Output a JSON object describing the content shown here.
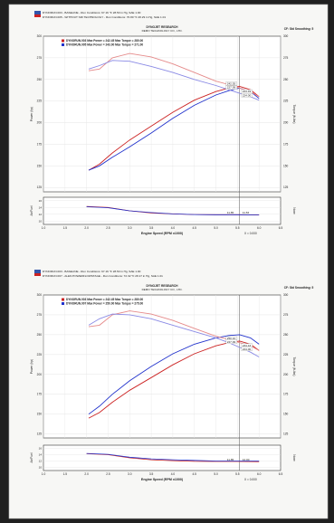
{
  "colors": {
    "red": "#cc2222",
    "blue": "#2233cc",
    "pink": "#e58a8a",
    "lightblue": "#8a8ae5",
    "background": "#202020",
    "paper": "#f7f7f5"
  },
  "charts": [
    {
      "header_line1": "DYNORUN.003 - BASELINE - Run Conditions: 67.16 °F 28.50 in Hg, SAE 1.00",
      "header_line2": "DYNORUN.005 - WITHOUT SRI TECHNOLOGY - Run Conditions: 70.80 °F 28.29 in Hg, SAE 1.01",
      "company_line1": "DYNOJET RESEARCH",
      "company_line2": "DEMO TECHNOLOGY CO., LTD.",
      "right_note": "CF: Std Smoothing: 5",
      "legend": [
        {
          "label": "DYNORUN.003 Max Power = 242.45   Max Torque = 280.00",
          "color": "red"
        },
        {
          "label": "DYNORUN.005 Max Power = 243.00   Max Torque = 271.00",
          "color": "blue"
        }
      ],
      "annotations": [
        "242.55",
        "227.99",
        "224.49",
        "224.00"
      ],
      "lower_annotations": [
        "11.85",
        "11.84"
      ],
      "ylabel_left": "Power (hp)",
      "ylabel_right": "Torque (ft-lbs)",
      "ylabel_lower": "Air/Fuel",
      "ylabel_lower_right": "None",
      "xlabel": "Engine Speed (RPM x1000)",
      "x_note": "X = 0.000",
      "footer": []
    },
    {
      "header_line1": "DYNORUN.003 - BASELINE - Run Conditions: 67.16 °F 28.50 in Hg, SAE 1.00",
      "header_line2": "DYNORUN.007 - ALEN POWERFLOWSTAGE - Run Conditions: 72.32 °F 28.17 in Hg, SAE 1.01",
      "company_line1": "DYNOJET RESEARCH",
      "company_line2": "DEMO TECHNOLOGY CO., LTD.",
      "right_note": "CF: Std Smoothing: 5",
      "legend": [
        {
          "label": "DYNORUN.003 Max Power = 242.45   Max Torque = 280.00",
          "color": "red"
        },
        {
          "label": "DYNORUN.007 Max Power = 250.00   Max Torque = 275.00",
          "color": "blue"
        }
      ],
      "annotations": [
        "250.10",
        "227.99",
        "234.43",
        "224.00"
      ],
      "lower_annotations": [
        "11.85",
        "12.00"
      ],
      "ylabel_left": "Power (hp)",
      "ylabel_right": "Torque (ft-lbs)",
      "ylabel_lower": "Air/Fuel",
      "ylabel_lower_right": "None",
      "xlabel": "Engine Speed (RPM x1000)",
      "x_note": "X = 0.000",
      "footer": []
    }
  ],
  "chart_data": [
    {
      "type": "line",
      "xlim": [
        1.0,
        6.5
      ],
      "x_ticks": [
        "1.0",
        "1.5",
        "2.0",
        "2.5",
        "3.0",
        "3.5",
        "4.0",
        "4.5",
        "5.0",
        "5.5",
        "6.0",
        "6.5"
      ],
      "y_ticks": [
        "300",
        "275",
        "250",
        "225",
        "200",
        "175",
        "150",
        "125"
      ],
      "y_ticks_right": [
        "300",
        "275",
        "250",
        "225",
        "200",
        "175",
        "150",
        "125"
      ],
      "lower_ticks": [
        "16",
        "14",
        "12",
        "10"
      ],
      "ylim": [
        120,
        300
      ],
      "lower_ylim": [
        9,
        17
      ],
      "cursor_x": 5.55,
      "series": [
        {
          "role": "power",
          "color": "red",
          "x": [
            2.05,
            2.3,
            2.6,
            3.0,
            3.5,
            4.0,
            4.5,
            5.0,
            5.3,
            5.55,
            5.8,
            6.0
          ],
          "y": [
            145,
            152,
            165,
            180,
            196,
            212,
            226,
            236,
            240,
            242,
            238,
            230
          ]
        },
        {
          "role": "power",
          "color": "blue",
          "x": [
            2.05,
            2.3,
            2.6,
            3.0,
            3.5,
            4.0,
            4.5,
            5.0,
            5.3,
            5.55,
            5.8,
            6.0
          ],
          "y": [
            145,
            150,
            160,
            172,
            188,
            205,
            220,
            232,
            237,
            240,
            236,
            228
          ]
        },
        {
          "role": "torque",
          "color": "pink",
          "x": [
            2.05,
            2.3,
            2.6,
            3.0,
            3.5,
            4.0,
            4.5,
            5.0,
            5.3,
            5.55,
            5.8,
            6.0
          ],
          "y": [
            260,
            262,
            275,
            280,
            276,
            268,
            258,
            248,
            244,
            240,
            236,
            230
          ]
        },
        {
          "role": "torque",
          "color": "lightblue",
          "x": [
            2.05,
            2.3,
            2.6,
            3.0,
            3.5,
            4.0,
            4.5,
            5.0,
            5.3,
            5.55,
            5.8,
            6.0
          ],
          "y": [
            262,
            266,
            272,
            271,
            265,
            258,
            250,
            243,
            238,
            234,
            230,
            226
          ]
        }
      ],
      "lower_series": [
        {
          "color": "red",
          "x": [
            2.0,
            2.5,
            3.0,
            3.5,
            4.0,
            4.5,
            5.0,
            5.5,
            6.0
          ],
          "y": [
            14.3,
            14.0,
            13.0,
            12.4,
            12.1,
            11.9,
            11.85,
            11.85,
            11.8
          ]
        },
        {
          "color": "blue",
          "x": [
            2.0,
            2.5,
            3.0,
            3.5,
            4.0,
            4.5,
            5.0,
            5.5,
            6.0
          ],
          "y": [
            14.2,
            13.9,
            13.0,
            12.5,
            12.1,
            11.9,
            11.84,
            11.84,
            11.8
          ]
        }
      ]
    },
    {
      "type": "line",
      "xlim": [
        1.0,
        6.5
      ],
      "x_ticks": [
        "1.0",
        "1.5",
        "2.0",
        "2.5",
        "3.0",
        "3.5",
        "4.0",
        "4.5",
        "5.0",
        "5.5",
        "6.0",
        "6.5"
      ],
      "y_ticks": [
        "300",
        "275",
        "250",
        "225",
        "200",
        "175",
        "150",
        "125"
      ],
      "y_ticks_right": [
        "300",
        "275",
        "250",
        "225",
        "200",
        "175",
        "150",
        "125"
      ],
      "lower_ticks": [
        "16",
        "14",
        "12",
        "10"
      ],
      "ylim": [
        120,
        300
      ],
      "lower_ylim": [
        9,
        17
      ],
      "cursor_x": 5.55,
      "series": [
        {
          "role": "power",
          "color": "red",
          "x": [
            2.05,
            2.3,
            2.6,
            3.0,
            3.5,
            4.0,
            4.5,
            5.0,
            5.3,
            5.55,
            5.8,
            6.0
          ],
          "y": [
            145,
            152,
            165,
            180,
            196,
            212,
            226,
            236,
            240,
            242,
            238,
            230
          ]
        },
        {
          "role": "power",
          "color": "blue",
          "x": [
            2.05,
            2.3,
            2.6,
            3.0,
            3.5,
            4.0,
            4.5,
            5.0,
            5.3,
            5.55,
            5.8,
            6.0
          ],
          "y": [
            150,
            160,
            175,
            192,
            210,
            226,
            238,
            246,
            249,
            250,
            246,
            238
          ]
        },
        {
          "role": "torque",
          "color": "pink",
          "x": [
            2.05,
            2.3,
            2.6,
            3.0,
            3.5,
            4.0,
            4.5,
            5.0,
            5.3,
            5.55,
            5.8,
            6.0
          ],
          "y": [
            260,
            262,
            275,
            280,
            276,
            268,
            258,
            248,
            244,
            240,
            236,
            230
          ]
        },
        {
          "role": "torque",
          "color": "lightblue",
          "x": [
            2.05,
            2.3,
            2.6,
            3.0,
            3.5,
            4.0,
            4.5,
            5.0,
            5.3,
            5.55,
            5.8,
            6.0
          ],
          "y": [
            262,
            270,
            276,
            275,
            270,
            262,
            254,
            246,
            240,
            234,
            228,
            222
          ]
        }
      ],
      "lower_series": [
        {
          "color": "red",
          "x": [
            2.0,
            2.5,
            3.0,
            3.5,
            4.0,
            4.5,
            5.0,
            5.5,
            6.0
          ],
          "y": [
            14.3,
            14.0,
            13.0,
            12.4,
            12.1,
            11.9,
            11.85,
            11.85,
            11.8
          ]
        },
        {
          "color": "blue",
          "x": [
            2.0,
            2.5,
            3.0,
            3.5,
            4.0,
            4.5,
            5.0,
            5.5,
            6.0
          ],
          "y": [
            14.4,
            14.1,
            13.2,
            12.7,
            12.4,
            12.2,
            12.0,
            12.0,
            12.0
          ]
        }
      ]
    }
  ]
}
